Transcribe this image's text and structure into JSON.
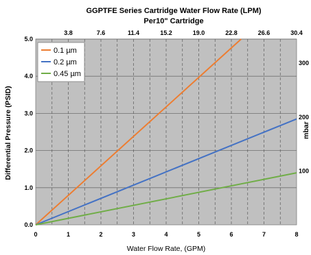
{
  "chart_data": {
    "type": "line",
    "title": "GGPTFE Series Cartridge Water Flow Rate (LPM)",
    "subtitle": "Per10\" Cartridge",
    "xlabel": "Water Flow Rate, (GPM)",
    "ylabel": "Differential Pressure (PSID)",
    "y2label": "mbar",
    "xlim": [
      0,
      8
    ],
    "ylim": [
      0,
      5
    ],
    "x_ticks": [
      "0",
      "1",
      "2",
      "3",
      "4",
      "5",
      "6",
      "7",
      "8"
    ],
    "y_ticks": [
      "0.0",
      "1.0",
      "2.0",
      "3.0",
      "4.0",
      "5.0"
    ],
    "x2_ticks": [
      "3.8",
      "7.6",
      "11.4",
      "15.2",
      "19.0",
      "22.8",
      "26.6",
      "30.4"
    ],
    "y2_ticks": [
      "100",
      "200",
      "300"
    ],
    "grid": true,
    "legend_position": "top-left",
    "series": [
      {
        "name": "0.1  µm",
        "color": "#ED7D31",
        "x": [
          0,
          6.3
        ],
        "y": [
          0,
          5.0
        ]
      },
      {
        "name": "0.2  µm",
        "color": "#4472C4",
        "x": [
          0,
          8
        ],
        "y": [
          0,
          2.85
        ]
      },
      {
        "name": "0.45  µm",
        "color": "#70AD47",
        "x": [
          0,
          8
        ],
        "y": [
          0,
          1.4
        ]
      }
    ]
  }
}
